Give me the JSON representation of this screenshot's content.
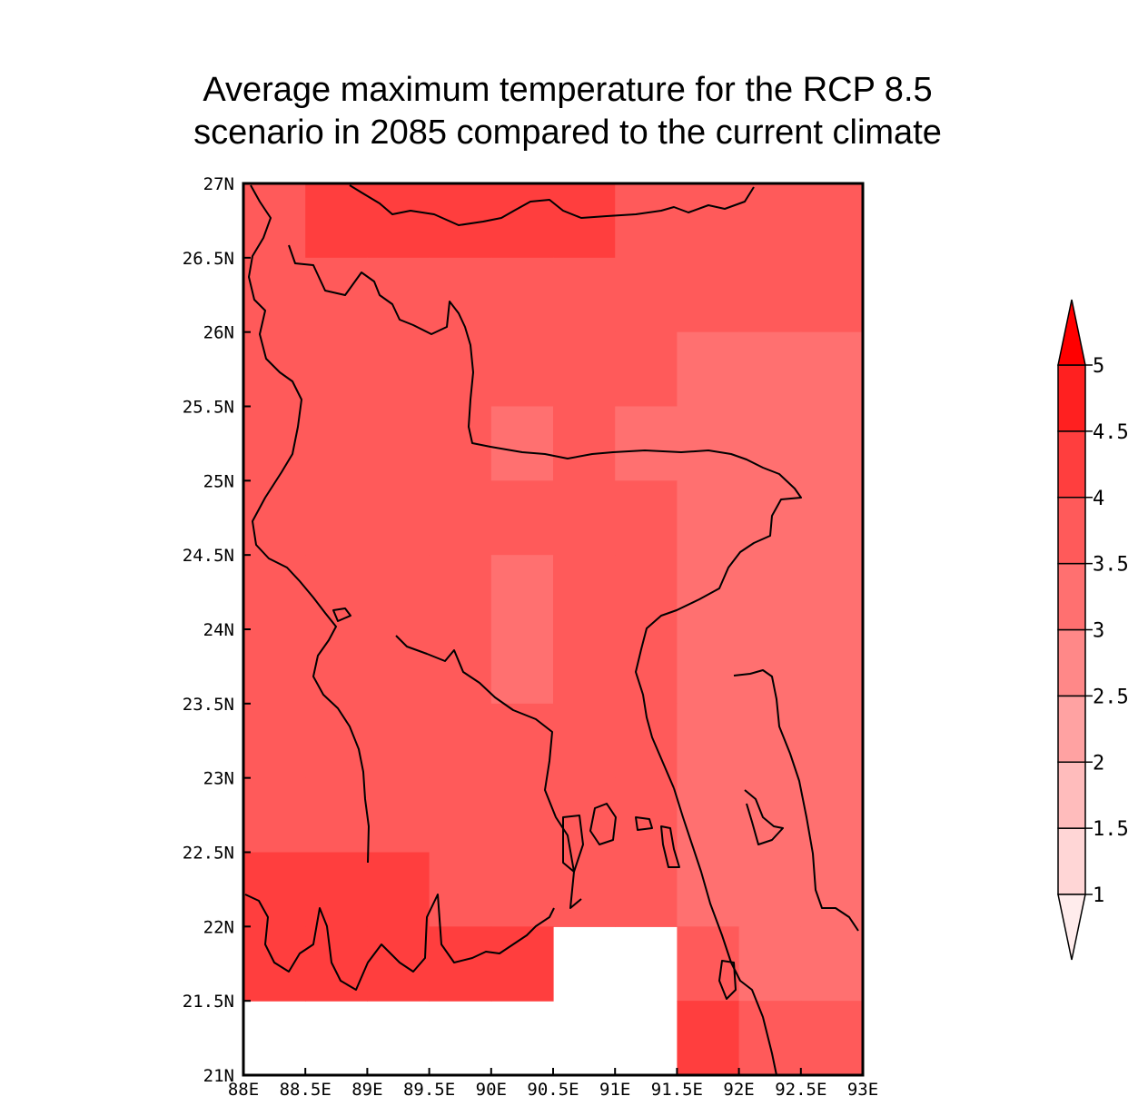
{
  "title": {
    "line1": "Average maximum temperature for the RCP 8.5",
    "line2": "scenario in 2085 compared to the current climate"
  },
  "map": {
    "lon_range": [
      88,
      93
    ],
    "lat_range": [
      21,
      27
    ],
    "cell_size_deg": 0.5,
    "x_ticks": [
      "88E",
      "88.5E",
      "89E",
      "89.5E",
      "90E",
      "90.5E",
      "91E",
      "91.5E",
      "92E",
      "92.5E",
      "93E"
    ],
    "y_ticks": [
      "21N",
      "21.5N",
      "22N",
      "22.5N",
      "23N",
      "23.5N",
      "24N",
      "24.5N",
      "25N",
      "25.5N",
      "26N",
      "26.5N",
      "27N"
    ],
    "grid_rows_north_to_south": [
      [
        3.75,
        4.25,
        4.25,
        4.25,
        4.25,
        4.25,
        3.75,
        3.75,
        3.75,
        3.75
      ],
      [
        3.75,
        3.75,
        3.75,
        3.75,
        3.75,
        3.75,
        3.75,
        3.75,
        3.75,
        3.75
      ],
      [
        3.75,
        3.75,
        3.75,
        3.75,
        3.75,
        3.75,
        3.75,
        3.25,
        3.25,
        3.25
      ],
      [
        3.75,
        3.75,
        3.75,
        3.75,
        3.25,
        3.75,
        3.25,
        3.25,
        3.25,
        3.25
      ],
      [
        3.75,
        3.75,
        3.75,
        3.75,
        3.75,
        3.75,
        3.75,
        3.25,
        3.25,
        3.25
      ],
      [
        3.75,
        3.75,
        3.75,
        3.75,
        3.25,
        3.75,
        3.75,
        3.25,
        3.25,
        3.25
      ],
      [
        3.75,
        3.75,
        3.75,
        3.75,
        3.25,
        3.75,
        3.75,
        3.25,
        3.25,
        3.25
      ],
      [
        3.75,
        3.75,
        3.75,
        3.75,
        3.75,
        3.75,
        3.75,
        3.25,
        3.25,
        3.25
      ],
      [
        3.75,
        3.75,
        3.75,
        3.75,
        3.75,
        3.75,
        3.75,
        3.25,
        3.25,
        3.25
      ],
      [
        4.25,
        4.25,
        4.25,
        3.75,
        3.75,
        3.75,
        3.75,
        3.25,
        3.25,
        3.25
      ],
      [
        4.25,
        4.25,
        4.25,
        4.25,
        4.25,
        null,
        null,
        3.75,
        3.25,
        3.25
      ],
      [
        null,
        null,
        null,
        null,
        null,
        null,
        null,
        4.25,
        3.75,
        3.75
      ]
    ]
  },
  "legend": {
    "levels": [
      "1",
      "1.5",
      "2",
      "2.5",
      "3",
      "3.5",
      "4",
      "4.5",
      "5"
    ],
    "colors": [
      "#ffd6d6",
      "#ffbcbc",
      "#ffa2a2",
      "#ff8888",
      "#ff7070",
      "#ff5a5a",
      "#ff3e3e",
      "#ff2020"
    ],
    "under_color": "#ffecec",
    "over_color": "#ff0000"
  }
}
